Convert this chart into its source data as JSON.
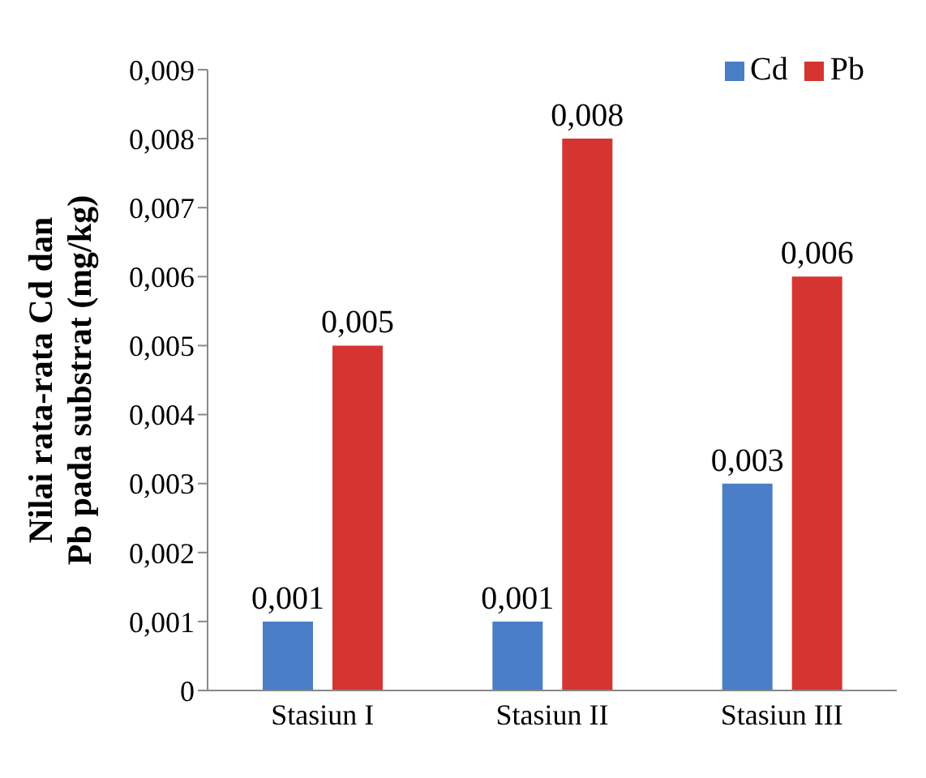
{
  "chart_data": {
    "type": "bar",
    "ylabel": "Nilai rata-rata Cd dan Pb pada substrat (mg/kg)",
    "categories": [
      "Stasiun I",
      "Stasiun II",
      "Stasiun III"
    ],
    "series": [
      {
        "name": "Cd",
        "color": "#4a7ec6",
        "values": [
          0.001,
          0.001,
          0.003
        ],
        "value_labels": [
          "0,001",
          "0,001",
          "0,003"
        ]
      },
      {
        "name": "Pb",
        "color": "#d63430",
        "values": [
          0.005,
          0.008,
          0.006
        ],
        "value_labels": [
          "0,005",
          "0,008",
          "0,006"
        ]
      }
    ],
    "ylim": [
      0,
      0.009
    ],
    "yticks": [
      0,
      {
        "value": 0.001,
        "label": "0,001"
      },
      {
        "value": 0.002,
        "label": "0,002"
      },
      {
        "value": 0.003,
        "label": "0,003"
      },
      {
        "value": 0.004,
        "label": "0,004"
      },
      {
        "value": 0.005,
        "label": "0,005"
      },
      {
        "value": 0.006,
        "label": "0,006"
      },
      {
        "value": 0.007,
        "label": "0,007"
      },
      {
        "value": 0.008,
        "label": "0,008"
      },
      {
        "value": 0.009,
        "label": "0,009"
      }
    ],
    "grid": false,
    "legend": "top right"
  }
}
